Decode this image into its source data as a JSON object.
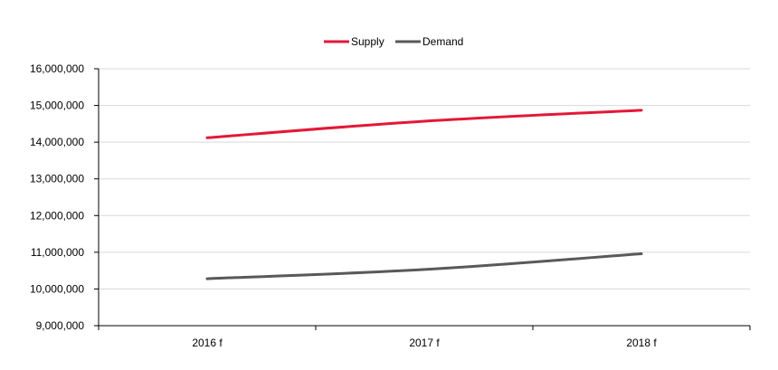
{
  "chart_data": {
    "type": "line",
    "categories": [
      "2016 f",
      "2017 f",
      "2018 f"
    ],
    "series": [
      {
        "name": "Supply",
        "values": [
          14120000,
          14570000,
          14870000
        ],
        "color": "#e31837"
      },
      {
        "name": "Demand",
        "values": [
          10280000,
          10530000,
          10960000
        ],
        "color": "#595959"
      }
    ],
    "y_ticks": [
      "9,000,000",
      "10,000,000",
      "11,000,000",
      "12,000,000",
      "13,000,000",
      "14,000,000",
      "15,000,000",
      "16,000,000"
    ],
    "ylim": [
      9000000,
      16000000
    ],
    "grid": true,
    "legend_position": "top-center",
    "axis_color": "#000000",
    "grid_color": "#d9d9d9"
  }
}
